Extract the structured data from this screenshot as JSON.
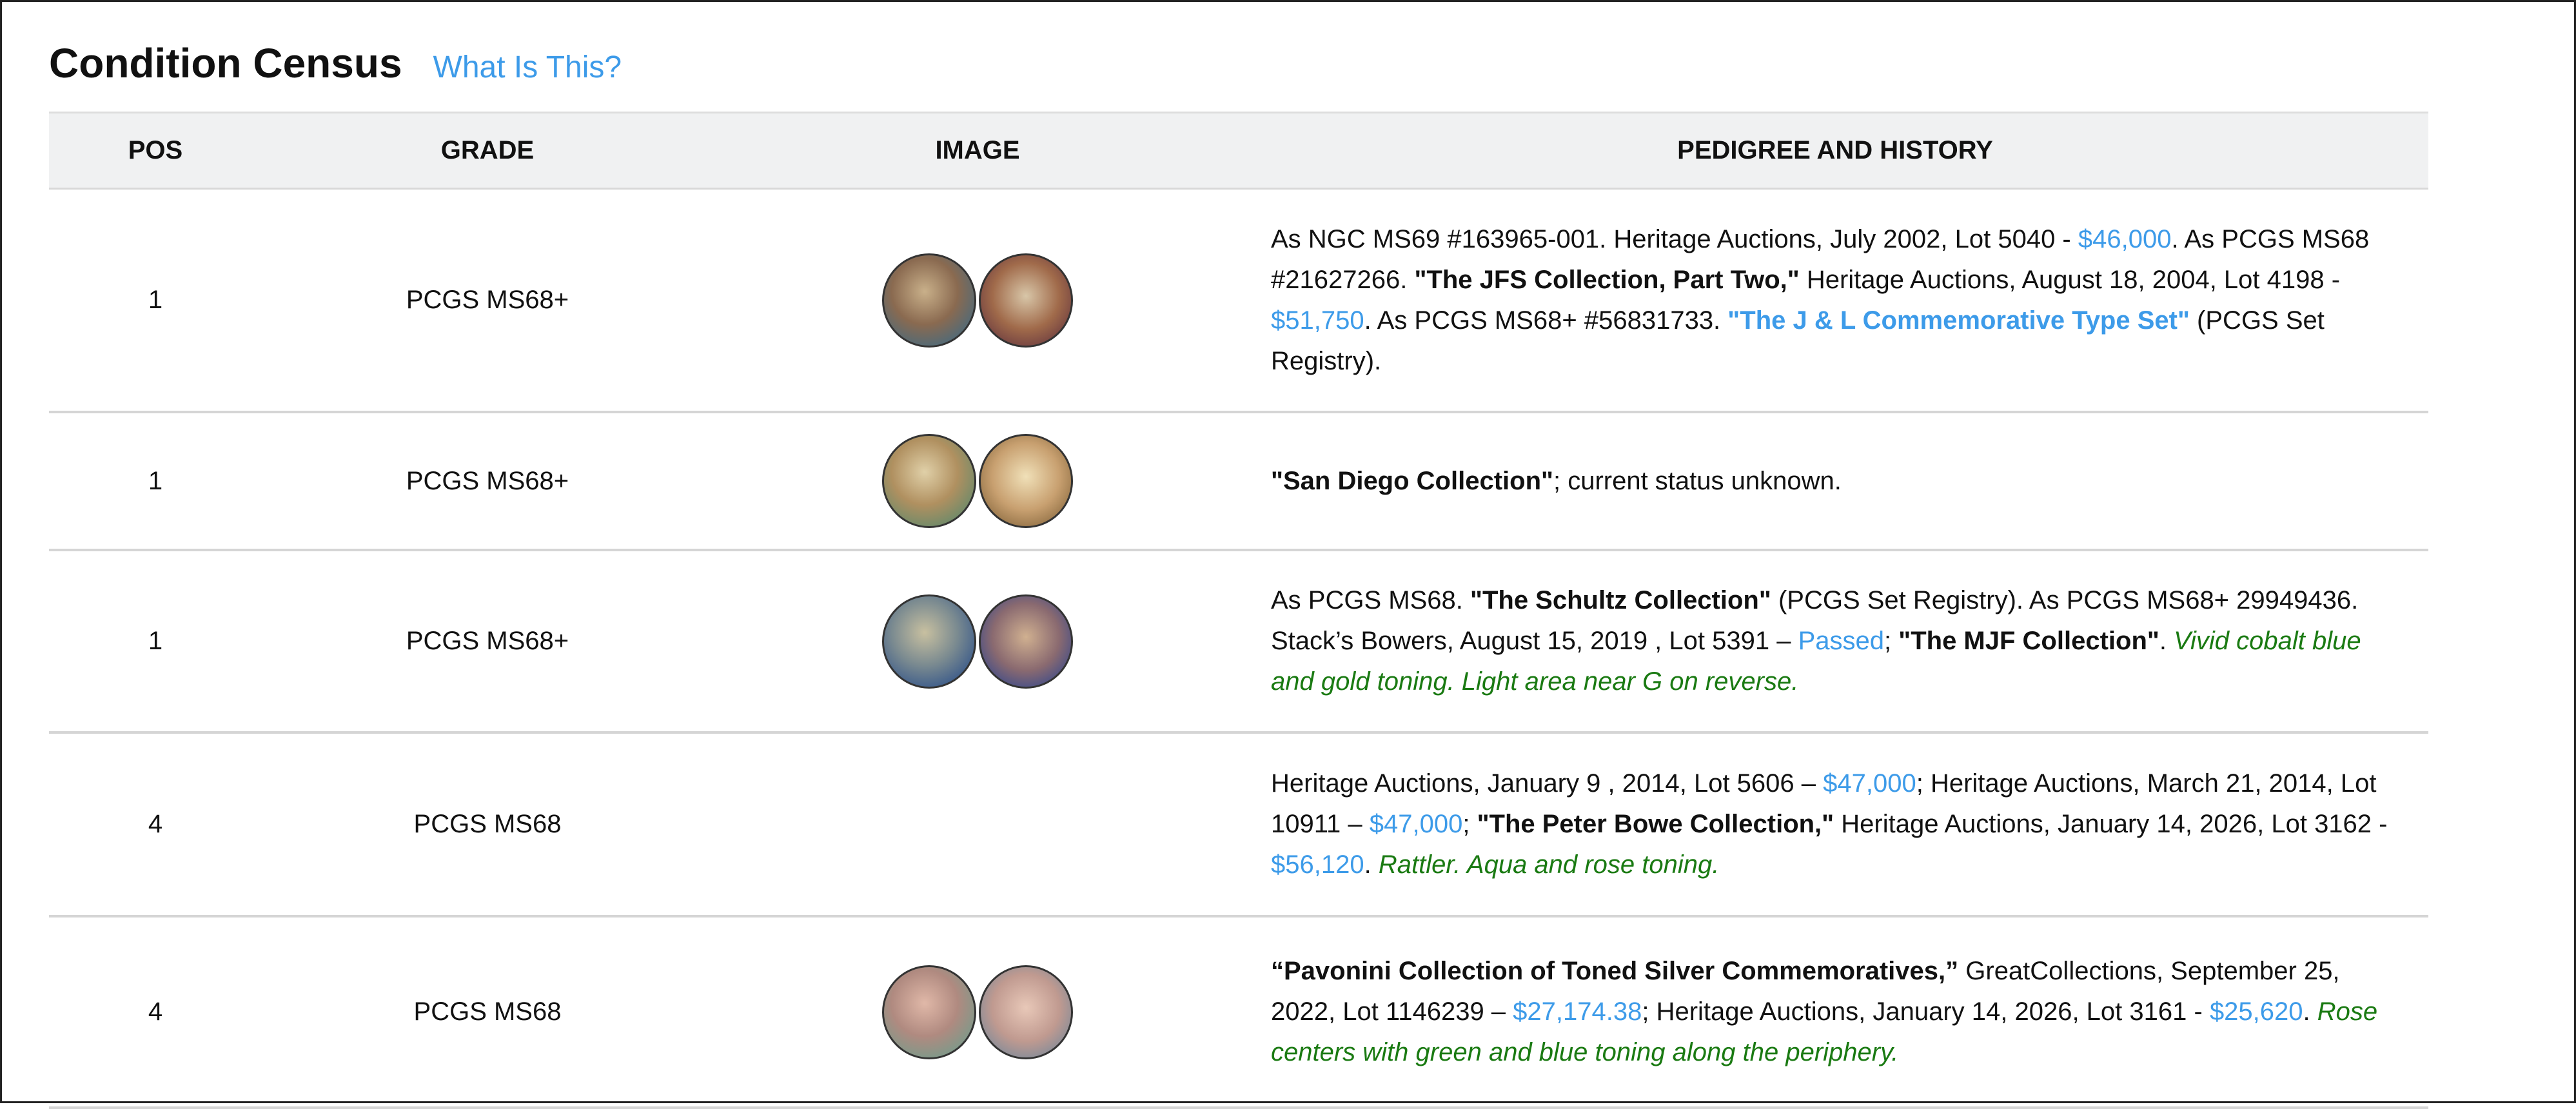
{
  "header": {
    "title": "Condition Census",
    "help_link": "What Is This?"
  },
  "columns": [
    "POS",
    "GRADE",
    "IMAGE",
    "PEDIGREE AND HISTORY"
  ],
  "colors": {
    "link": "#3d9be9",
    "note": "#1a7a12",
    "header_bg": "#f0f1f2"
  },
  "rows": [
    {
      "pos": "1",
      "grade": "PCGS MS68+",
      "has_image": true,
      "pedigree": [
        {
          "t": "As NGC MS69 #163965-001. Heritage Auctions, July 2002, Lot 5040 - ",
          "s": "plain"
        },
        {
          "t": "$46,000",
          "s": "link"
        },
        {
          "t": ". As PCGS MS68 #21627266. ",
          "s": "plain"
        },
        {
          "t": "\"The JFS Collection, Part Two,\"",
          "s": "bold"
        },
        {
          "t": " Heritage Auctions, August 18, 2004, Lot 4198 - ",
          "s": "plain"
        },
        {
          "t": "$51,750",
          "s": "link"
        },
        {
          "t": ". As PCGS MS68+ #56831733. ",
          "s": "plain"
        },
        {
          "t": "\"The J & L Commemorative Type Set\"",
          "s": "linkbold"
        },
        {
          "t": " (PCGS Set Registry).",
          "s": "plain"
        }
      ]
    },
    {
      "pos": "1",
      "grade": "PCGS MS68+",
      "has_image": true,
      "pedigree": [
        {
          "t": "\"San Diego Collection\"",
          "s": "bold"
        },
        {
          "t": "; current status unknown.",
          "s": "plain"
        }
      ]
    },
    {
      "pos": "1",
      "grade": "PCGS MS68+",
      "has_image": true,
      "pedigree": [
        {
          "t": "As PCGS MS68. ",
          "s": "plain"
        },
        {
          "t": "\"The Schultz Collection\"",
          "s": "bold"
        },
        {
          "t": " (PCGS Set Registry). As PCGS MS68+ 29949436. Stack’s Bowers, August 15, 2019 , Lot 5391 – ",
          "s": "plain"
        },
        {
          "t": "Passed",
          "s": "link"
        },
        {
          "t": "; ",
          "s": "plain"
        },
        {
          "t": "\"The MJF Collection\"",
          "s": "bold"
        },
        {
          "t": ". ",
          "s": "plain"
        },
        {
          "t": "Vivid cobalt blue and gold toning. Light area near G on reverse.",
          "s": "note"
        }
      ]
    },
    {
      "pos": "4",
      "grade": "PCGS MS68",
      "has_image": false,
      "pedigree": [
        {
          "t": "Heritage Auctions, January 9 , 2014, Lot 5606 – ",
          "s": "plain"
        },
        {
          "t": "$47,000",
          "s": "link"
        },
        {
          "t": "; Heritage Auctions, March 21, 2014, Lot 10911 – ",
          "s": "plain"
        },
        {
          "t": "$47,000",
          "s": "link"
        },
        {
          "t": "; ",
          "s": "plain"
        },
        {
          "t": "\"The Peter Bowe Collection,\"",
          "s": "bold"
        },
        {
          "t": " Heritage Auctions, January 14, 2026, Lot 3162 - ",
          "s": "plain"
        },
        {
          "t": "$56,120",
          "s": "link"
        },
        {
          "t": ". ",
          "s": "plain"
        },
        {
          "t": "Rattler. Aqua and rose toning.",
          "s": "note"
        }
      ]
    },
    {
      "pos": "4",
      "grade": "PCGS MS68",
      "has_image": true,
      "pedigree": [
        {
          "t": "“Pavonini Collection of Toned Silver Commemoratives,”",
          "s": "bold"
        },
        {
          "t": " GreatCollections, September 25, 2022, Lot 1146239 – ",
          "s": "plain"
        },
        {
          "t": "$27,174.38",
          "s": "link"
        },
        {
          "t": "; Heritage Auctions, January 14, 2026, Lot 3161 - ",
          "s": "plain"
        },
        {
          "t": "$25,620",
          "s": "link"
        },
        {
          "t": ". ",
          "s": "plain"
        },
        {
          "t": "Rose centers with green and blue toning along the periphery.",
          "s": "note"
        }
      ]
    }
  ]
}
